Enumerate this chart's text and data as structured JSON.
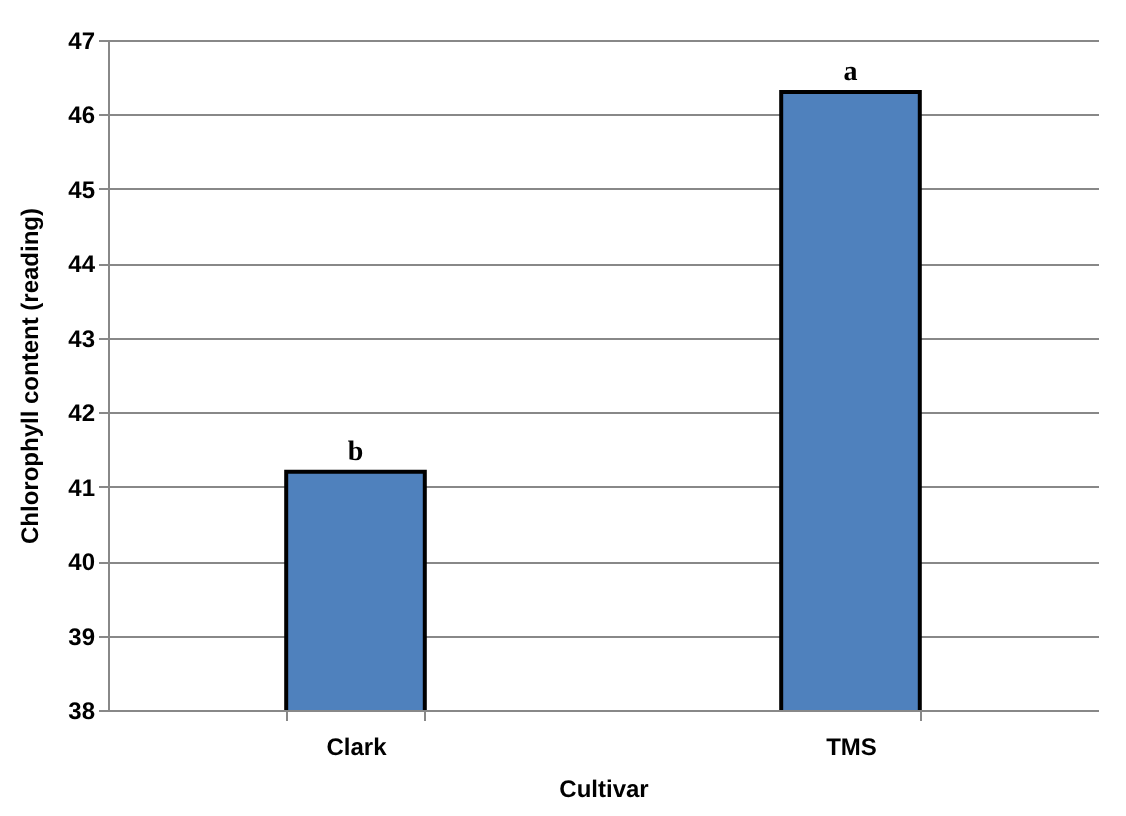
{
  "chart_data": {
    "type": "bar",
    "xlabel": "Cultivar",
    "ylabel": "Chlorophyll content (reading)",
    "categories": [
      "Clark",
      "TMS"
    ],
    "values": [
      41.2,
      46.3
    ],
    "color": "#4f81bd",
    "ylim": [
      38,
      47
    ],
    "yticks": [
      38,
      39,
      40,
      41,
      42,
      43,
      44,
      45,
      46,
      47
    ],
    "grid": "y",
    "annotations": [
      {
        "text": "b",
        "x": "Clark",
        "y": 41.2
      },
      {
        "text": "a",
        "x": "TMS",
        "y": 46.3
      }
    ]
  }
}
